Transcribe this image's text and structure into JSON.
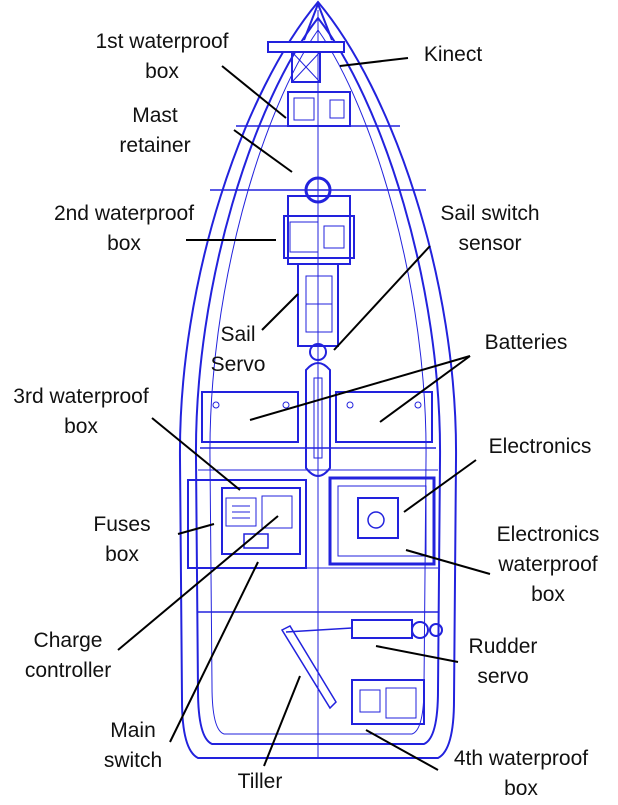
{
  "colors": {
    "hull": "#2222dd",
    "leader": "#000000",
    "text": "#111111",
    "background": "#ffffff"
  },
  "labels": {
    "box1": {
      "line1": "1st waterproof",
      "line2": "box"
    },
    "kinect": {
      "line1": "Kinect"
    },
    "mast": {
      "line1": "Mast",
      "line2": "retainer"
    },
    "box2": {
      "line1": "2nd waterproof",
      "line2": "box"
    },
    "sail_switch": {
      "line1": "Sail switch",
      "line2": "sensor"
    },
    "sail_servo": {
      "line1": "Sail",
      "line2": "Servo"
    },
    "batteries": {
      "line1": "Batteries"
    },
    "box3": {
      "line1": "3rd waterproof",
      "line2": "box"
    },
    "electronics": {
      "line1": "Electronics"
    },
    "fuses": {
      "line1": "Fuses",
      "line2": "box"
    },
    "elec_box": {
      "line1": "Electronics",
      "line2": "waterproof",
      "line3": "box"
    },
    "charge": {
      "line1": "Charge",
      "line2": "controller"
    },
    "rudder": {
      "line1": "Rudder",
      "line2": "servo"
    },
    "main_switch": {
      "line1": "Main",
      "line2": "switch"
    },
    "tiller": {
      "line1": "Tiller"
    },
    "box4": {
      "line1": "4th waterproof",
      "line2": "box"
    }
  }
}
